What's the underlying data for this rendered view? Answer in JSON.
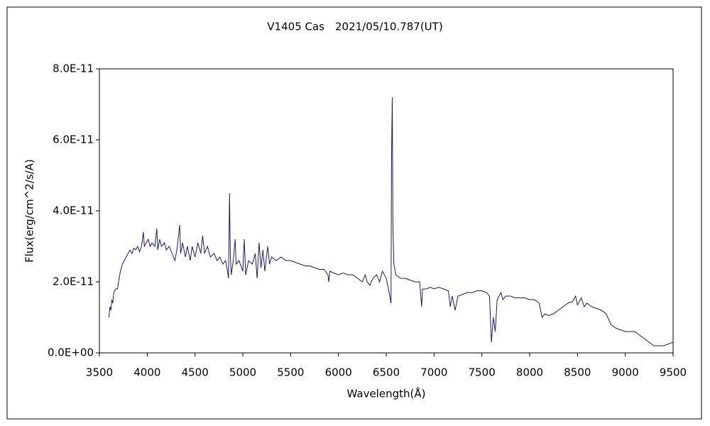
{
  "chart_data": {
    "type": "line",
    "title": "V1405 Cas　2021/05/10.787(UT)",
    "x_label": "Wavelength(Å)",
    "y_label": "Flux(erg/cm^2/s/A)",
    "xlim": [
      3500,
      9500
    ],
    "xticks": [
      3500,
      4000,
      4500,
      5000,
      5500,
      6000,
      6500,
      7000,
      7500,
      8000,
      8500,
      9000,
      9500
    ],
    "ylim": [
      0,
      8e-11
    ],
    "yticks": [
      {
        "value": 0,
        "label": "0.0E+00"
      },
      {
        "value": 2e-11,
        "label": "2.0E-11"
      },
      {
        "value": 4e-11,
        "label": "4.0E-11"
      },
      {
        "value": 6e-11,
        "label": "6.0E-11"
      },
      {
        "value": 8e-11,
        "label": "8.0E-11"
      }
    ],
    "grid": false,
    "color": "#1a1a6e",
    "x": [
      3600,
      3610,
      3620,
      3630,
      3640,
      3650,
      3670,
      3690,
      3700,
      3720,
      3740,
      3760,
      3780,
      3800,
      3820,
      3840,
      3860,
      3880,
      3900,
      3920,
      3940,
      3960,
      3970,
      3990,
      4010,
      4030,
      4050,
      4080,
      4100,
      4110,
      4130,
      4150,
      4180,
      4200,
      4230,
      4260,
      4290,
      4310,
      4340,
      4350,
      4370,
      4400,
      4420,
      4450,
      4470,
      4500,
      4530,
      4560,
      4580,
      4600,
      4630,
      4660,
      4700,
      4730,
      4760,
      4790,
      4820,
      4840,
      4850,
      4861,
      4870,
      4880,
      4900,
      4920,
      4930,
      4960,
      5000,
      5015,
      5030,
      5060,
      5100,
      5130,
      5150,
      5170,
      5190,
      5210,
      5230,
      5260,
      5280,
      5300,
      5350,
      5400,
      5450,
      5500,
      5550,
      5600,
      5650,
      5700,
      5750,
      5800,
      5850,
      5890,
      5900,
      5910,
      5950,
      6000,
      6050,
      6100,
      6150,
      6200,
      6250,
      6280,
      6300,
      6330,
      6360,
      6400,
      6430,
      6460,
      6500,
      6530,
      6550,
      6555,
      6563,
      6570,
      6580,
      6600,
      6650,
      6700,
      6750,
      6800,
      6850,
      6870,
      6880,
      6920,
      6960,
      7000,
      7050,
      7100,
      7150,
      7170,
      7190,
      7220,
      7250,
      7300,
      7350,
      7400,
      7450,
      7500,
      7550,
      7580,
      7600,
      7620,
      7640,
      7660,
      7700,
      7720,
      7750,
      7800,
      7850,
      7900,
      7950,
      8000,
      8050,
      8100,
      8130,
      8160,
      8200,
      8250,
      8300,
      8350,
      8400,
      8450,
      8480,
      8500,
      8540,
      8570,
      8600,
      8650,
      8700,
      8750,
      8800,
      8850,
      8900,
      8950,
      9000,
      9050,
      9100,
      9150,
      9200,
      9250,
      9300,
      9350,
      9400,
      9450,
      9500
    ],
    "values": [
      1e-11,
      1.3e-11,
      1.2e-11,
      1.5e-11,
      1.4e-11,
      1.7e-11,
      1.8e-11,
      1.8e-11,
      2e-11,
      2.3e-11,
      2.5e-11,
      2.6e-11,
      2.7e-11,
      2.8e-11,
      2.9e-11,
      2.8e-11,
      2.95e-11,
      2.9e-11,
      3e-11,
      2.85e-11,
      3e-11,
      3.4e-11,
      3e-11,
      3.1e-11,
      3.2e-11,
      3e-11,
      3.1e-11,
      3e-11,
      3.5e-11,
      2.9e-11,
      3.2e-11,
      3e-11,
      3.1e-11,
      2.9e-11,
      3e-11,
      2.8e-11,
      2.6e-11,
      2.9e-11,
      3.6e-11,
      2.8e-11,
      3.1e-11,
      2.7e-11,
      3e-11,
      2.6e-11,
      3e-11,
      2.7e-11,
      3.1e-11,
      2.8e-11,
      3.3e-11,
      2.8e-11,
      3e-11,
      2.7e-11,
      2.8e-11,
      2.6e-11,
      2.7e-11,
      2.5e-11,
      2.6e-11,
      2.3e-11,
      2.1e-11,
      4.5e-11,
      2.7e-11,
      2.2e-11,
      2.6e-11,
      3.2e-11,
      2.5e-11,
      2.6e-11,
      2.3e-11,
      3.2e-11,
      2.2e-11,
      2.6e-11,
      2.5e-11,
      2.8e-11,
      2.1e-11,
      3.1e-11,
      2.4e-11,
      2.9e-11,
      2.3e-11,
      3e-11,
      2.5e-11,
      2.7e-11,
      2.6e-11,
      2.7e-11,
      2.6e-11,
      2.6e-11,
      2.55e-11,
      2.5e-11,
      2.45e-11,
      2.45e-11,
      2.4e-11,
      2.35e-11,
      2.35e-11,
      2.2e-11,
      2e-11,
      2.3e-11,
      2.25e-11,
      2.2e-11,
      2.25e-11,
      2.2e-11,
      2.2e-11,
      2.1e-11,
      2e-11,
      2.2e-11,
      2e-11,
      1.9e-11,
      2.1e-11,
      2.2e-11,
      2e-11,
      2.3e-11,
      2.1e-11,
      1.7e-11,
      1.4e-11,
      5.4e-11,
      7.2e-11,
      3.5e-11,
      2.5e-11,
      2.2e-11,
      2.1e-11,
      2.1e-11,
      2.05e-11,
      2e-11,
      2e-11,
      1.3e-11,
      1.8e-11,
      1.8e-11,
      1.85e-11,
      1.8e-11,
      1.85e-11,
      1.8e-11,
      1.75e-11,
      1.3e-11,
      1.6e-11,
      1.2e-11,
      1.6e-11,
      1.65e-11,
      1.7e-11,
      1.7e-11,
      1.75e-11,
      1.75e-11,
      1.7e-11,
      1.6e-11,
      3e-12,
      1e-11,
      6e-12,
      1.5e-11,
      1.7e-11,
      1.5e-11,
      1.6e-11,
      1.6e-11,
      1.55e-11,
      1.55e-11,
      1.55e-11,
      1.5e-11,
      1.5e-11,
      1.4e-11,
      1e-11,
      1.1e-11,
      1.05e-11,
      1.1e-11,
      1.2e-11,
      1.3e-11,
      1.4e-11,
      1.45e-11,
      1.6e-11,
      1.35e-11,
      1.55e-11,
      1.3e-11,
      1.4e-11,
      1.3e-11,
      1.25e-11,
      1.2e-11,
      1.1e-11,
      8e-12,
      7e-12,
      6.5e-12,
      6e-12,
      6e-12,
      6e-12,
      5e-12,
      4e-12,
      3e-12,
      2e-12,
      2e-12,
      2e-12,
      2.5e-12,
      3e-12
    ]
  }
}
